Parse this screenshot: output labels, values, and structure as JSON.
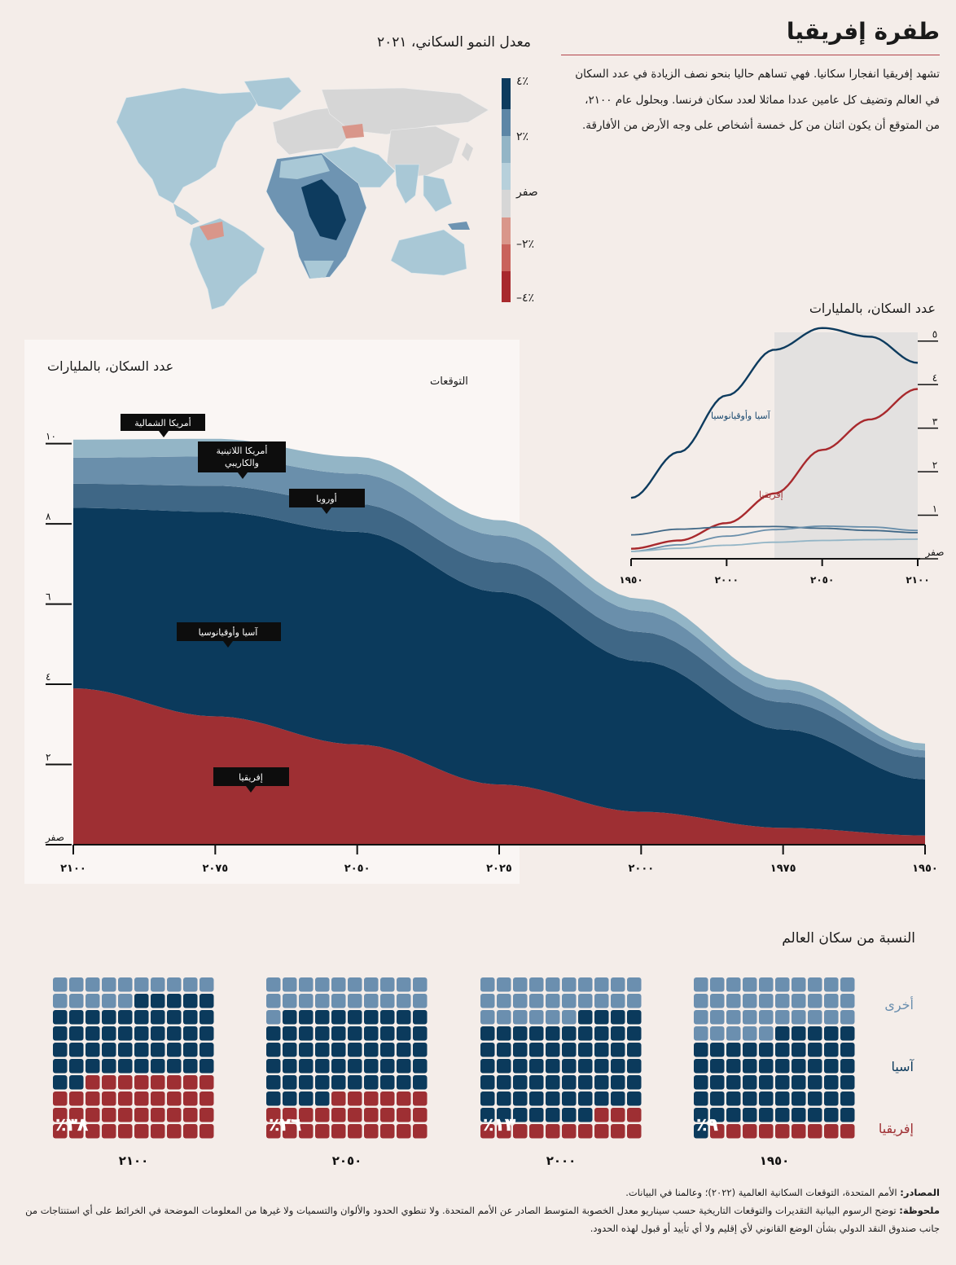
{
  "title": "طفرة إفريقيا",
  "intro": "تشهد إفريقيا انفجارا سكانيا. فهي تساهم حاليا بنحو نصف الزيادة في عدد السكان في العالم وتضيف كل عامين عددا مماثلا لعدد سكان فرنسا. وبحلول عام ٢١٠٠، من المتوقع أن يكون اثنان من كل خمسة أشخاص على وجه الأرض من الأفارقة.",
  "map": {
    "title": "معدل النمو السكاني، ٢٠٢١",
    "legend": [
      {
        "label": "٪٤",
        "color": "#0d3b5e"
      },
      {
        "label": "٪٢",
        "color": "#5d86a6"
      },
      {
        "label": "صفر",
        "color": "#d6d6d6"
      },
      {
        "label": "٪٢–",
        "color": "#d05a4c"
      },
      {
        "label": "٪٤–",
        "color": "#a8292d"
      }
    ],
    "colors": {
      "land": "#a9c8d6",
      "dark": "#0d3b5e",
      "mid": "#5d86a6",
      "grey": "#d6d6d6",
      "neg": "#d9968a"
    }
  },
  "small_chart": {
    "title": "عدد السكان، بالمليارات",
    "y_ticks": [
      "صفر",
      "١",
      "٢",
      "٣",
      "٤",
      "٥"
    ],
    "x_ticks": [
      "١٩٥٠",
      "٢٠٠٠",
      "٢٠٥٠",
      "٢١٠٠"
    ],
    "asia_label": "آسيا وأوقيانوسيا",
    "africa_label": "إفريقيا"
  },
  "main_chart": {
    "title": "عدد السكان، بالمليارات",
    "projection_label": "التوقعات",
    "y_ticks": [
      "صفر",
      "٢",
      "٤",
      "٦",
      "٨",
      "١٠"
    ],
    "x_ticks": [
      "٢١٠٠",
      "٢٠٧٥",
      "٢٠٥٠",
      "٢٠٢٥",
      "٢٠٠٠",
      "١٩٧٥",
      "١٩٥٠"
    ],
    "callouts": {
      "north_america": "أمريكا الشمالية",
      "latin_america_1": "أمريكا اللاتينية",
      "latin_america_2": "والكاريبي",
      "europe": "أوروبا",
      "asia": "آسيا وأوقيانوسيا",
      "africa": "إفريقيا"
    }
  },
  "share": {
    "title": "النسبة من سكان العالم",
    "categories": {
      "other": "أخرى",
      "asia": "آسيا",
      "africa": "إفريقيا"
    },
    "panels": [
      {
        "year": "١٩٥٠",
        "label": "٪٩",
        "africa": 9,
        "asia": 56,
        "other": 35
      },
      {
        "year": "٢٠٠٠",
        "label": "٪١٣",
        "africa": 13,
        "asia": 61,
        "other": 26
      },
      {
        "year": "٢٠٥٠",
        "label": "٪٢٦",
        "africa": 26,
        "asia": 53,
        "other": 21
      },
      {
        "year": "٢١٠٠",
        "label": "٪٣٨",
        "africa": 38,
        "asia": 47,
        "other": 15
      }
    ]
  },
  "footer": {
    "sources_label": "المصادر:",
    "sources": "الأمم المتحدة، التوقعات السكانية العالمية (٢٠٢٢)؛ وعالمنا في البيانات.",
    "note_label": "ملحوظة:",
    "note": "توضح الرسوم البيانية التقديرات والتوقعات التاريخية حسب سيناريو معدل الخصوبة المتوسط الصادر عن الأمم المتحدة. ولا تنطوي الحدود والألوان والتسميات ولا غيرها من المعلومات الموضحة في الخرائط على أي استنتاجات من جانب صندوق النقد الدولي بشأن الوضع القانوني لأي إقليم ولا أي تأييد أو قبول لهذه الحدود."
  },
  "colors": {
    "africa": "#9e2f33",
    "asia": "#0b3a5c",
    "europe": "#3f6786",
    "latam": "#6a8fab",
    "northam": "#93b5c6",
    "other_waffle": "#6b8faf",
    "callout_bg": "#0d0d0d",
    "projection_shade": "#e3e1e0"
  },
  "chart_data": [
    {
      "type": "area",
      "title": "عدد السكان، بالمليارات",
      "x": [
        1950,
        1975,
        2000,
        2025,
        2050,
        2075,
        2100
      ],
      "x_reversed": true,
      "ylim": [
        0,
        10.5
      ],
      "series": [
        {
          "name": "إفريقيا",
          "values": [
            0.23,
            0.42,
            0.82,
            1.5,
            2.5,
            3.2,
            3.9
          ]
        },
        {
          "name": "آسيا وأوقيانوسيا",
          "values": [
            1.4,
            2.45,
            3.75,
            4.8,
            5.3,
            5.1,
            4.5
          ]
        },
        {
          "name": "أوروبا",
          "values": [
            0.55,
            0.68,
            0.73,
            0.74,
            0.7,
            0.65,
            0.6
          ]
        },
        {
          "name": "أمريكا اللاتينية والكاريبي",
          "values": [
            0.17,
            0.32,
            0.52,
            0.67,
            0.75,
            0.73,
            0.65
          ]
        },
        {
          "name": "أمريكا الشمالية",
          "values": [
            0.17,
            0.24,
            0.31,
            0.38,
            0.42,
            0.44,
            0.45
          ]
        }
      ],
      "projection_start": 2022
    },
    {
      "type": "line",
      "title": "عدد السكان، بالمليارات",
      "x": [
        1950,
        1975,
        2000,
        2025,
        2050,
        2075,
        2100
      ],
      "ylim": [
        0,
        5.2
      ],
      "series": [
        {
          "name": "آسيا وأوقيانوسيا",
          "values": [
            1.4,
            2.45,
            3.75,
            4.8,
            5.3,
            5.1,
            4.5
          ]
        },
        {
          "name": "إفريقيا",
          "values": [
            0.23,
            0.42,
            0.82,
            1.5,
            2.5,
            3.2,
            3.9
          ]
        },
        {
          "values": [
            0.55,
            0.68,
            0.73,
            0.74,
            0.7,
            0.65,
            0.6
          ]
        },
        {
          "values": [
            0.17,
            0.32,
            0.52,
            0.67,
            0.75,
            0.73,
            0.65
          ]
        },
        {
          "values": [
            0.17,
            0.24,
            0.31,
            0.38,
            0.42,
            0.44,
            0.45
          ]
        }
      ],
      "projection_start": 2022
    },
    {
      "type": "waffle",
      "title": "النسبة من سكان العالم",
      "categories": [
        "١٩٥٠",
        "٢٠٠٠",
        "٢٠٥٠",
        "٢١٠٠"
      ],
      "series": [
        {
          "name": "إفريقيا",
          "values": [
            9,
            13,
            26,
            38
          ]
        },
        {
          "name": "آسيا",
          "values": [
            56,
            61,
            53,
            47
          ]
        },
        {
          "name": "أخرى",
          "values": [
            35,
            26,
            21,
            15
          ]
        }
      ]
    }
  ]
}
